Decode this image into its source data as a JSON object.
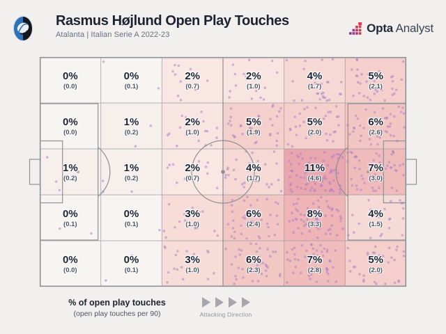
{
  "header": {
    "title": "Rasmus Højlund Open Play Touches",
    "subtitle": "Atalanta | Italian Serie A 2022-23",
    "club_logo": "Atalanta crest",
    "brand_bold": "Opta",
    "brand_regular": "Analyst"
  },
  "legend": {
    "primary": "% of open play touches",
    "secondary": "(open play touches per 90)",
    "direction_label": "Attacking Direction"
  },
  "colors": {
    "background": "#f1f0ee",
    "title_text": "#1c2230",
    "subtitle_text": "#667082",
    "pitch_lines": "#8f9096",
    "grid_lines": "#9c9ca2",
    "touch_dot": "#a97fc4",
    "arrow_gray": "#a6a6ac",
    "heat_low": "#f7f5f2",
    "heat_high": "#e9a6ae"
  },
  "chart_data": {
    "type": "heatmap",
    "title": "Rasmus Højlund Open Play Touches",
    "subtitle": "Atalanta | Italian Serie A 2022-23",
    "value_label": "% of open play touches",
    "secondary_value_label": "open play touches per 90",
    "attacking_direction": "left-to-right",
    "grid": {
      "cols": 6,
      "rows": 5
    },
    "dots": {
      "seed": 7,
      "per_point": 16,
      "radius": 1.8,
      "opacity": 0.52
    },
    "cells": [
      [
        {
          "pct": 0,
          "per90": 0.0,
          "color": "#f7f5f2"
        },
        {
          "pct": 0,
          "per90": 0.1,
          "color": "#f7f4f1"
        },
        {
          "pct": 2,
          "per90": 0.7,
          "color": "#f8e7e3"
        },
        {
          "pct": 2,
          "per90": 1.0,
          "color": "#f8e4e0"
        },
        {
          "pct": 4,
          "per90": 1.7,
          "color": "#f6d8d4"
        },
        {
          "pct": 5,
          "per90": 2.1,
          "color": "#f4cfcb"
        }
      ],
      [
        {
          "pct": 0,
          "per90": 0.0,
          "color": "#f7f5f2"
        },
        {
          "pct": 1,
          "per90": 0.2,
          "color": "#f6efeb"
        },
        {
          "pct": 2,
          "per90": 1.0,
          "color": "#f8e4e0"
        },
        {
          "pct": 5,
          "per90": 1.9,
          "color": "#f4d0cc"
        },
        {
          "pct": 5,
          "per90": 2.0,
          "color": "#f4cfcb"
        },
        {
          "pct": 6,
          "per90": 2.6,
          "color": "#f2c6c2"
        }
      ],
      [
        {
          "pct": 1,
          "per90": 0.2,
          "color": "#f6efeb"
        },
        {
          "pct": 1,
          "per90": 0.2,
          "color": "#f6efeb"
        },
        {
          "pct": 2,
          "per90": 0.7,
          "color": "#f8e7e3"
        },
        {
          "pct": 4,
          "per90": 1.7,
          "color": "#f6d8d4"
        },
        {
          "pct": 11,
          "per90": 4.6,
          "color": "#e9a6ae"
        },
        {
          "pct": 7,
          "per90": 3.0,
          "color": "#f0bcbb"
        }
      ],
      [
        {
          "pct": 0,
          "per90": 0.1,
          "color": "#f7f4f1"
        },
        {
          "pct": 0,
          "per90": 0.1,
          "color": "#f7f4f1"
        },
        {
          "pct": 3,
          "per90": 1.0,
          "color": "#f7dcd8"
        },
        {
          "pct": 6,
          "per90": 2.4,
          "color": "#f2c7c3"
        },
        {
          "pct": 8,
          "per90": 3.3,
          "color": "#eeb4b6"
        },
        {
          "pct": 4,
          "per90": 1.5,
          "color": "#f6dad6"
        }
      ],
      [
        {
          "pct": 0,
          "per90": 0.0,
          "color": "#f7f5f2"
        },
        {
          "pct": 0,
          "per90": 0.1,
          "color": "#f7f4f1"
        },
        {
          "pct": 3,
          "per90": 1.0,
          "color": "#f7dcd8"
        },
        {
          "pct": 6,
          "per90": 2.3,
          "color": "#f2c8c4"
        },
        {
          "pct": 7,
          "per90": 2.8,
          "color": "#f0bdbc"
        },
        {
          "pct": 5,
          "per90": 2.0,
          "color": "#f4cfcb"
        }
      ]
    ]
  }
}
